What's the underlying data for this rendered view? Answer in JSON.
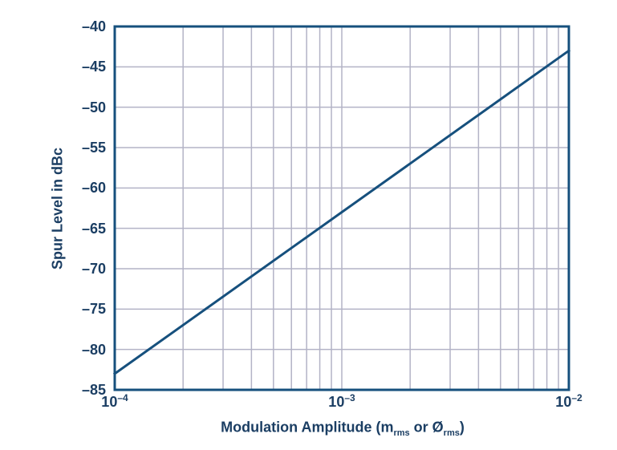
{
  "colors": {
    "background": "#ffffff",
    "text": "#1b3e63",
    "frame": "#16507d",
    "grid": "#b3b3c6",
    "line": "#16507d"
  },
  "labels": {
    "xlabel_parts": {
      "pre": "Modulation Amplitude (m",
      "sub1": "rms",
      "mid": " or Ø",
      "sub2": "rms",
      "post": ")"
    }
  },
  "chart_data": {
    "type": "line",
    "title": "",
    "xlabel": "Modulation Amplitude (m_rms or Ø_rms)",
    "ylabel": "Spur Level in dBc",
    "x_scale": "log",
    "y_scale": "linear",
    "xlim": [
      0.0001,
      0.01
    ],
    "ylim": [
      -85,
      -40
    ],
    "grid": true,
    "legend": "none",
    "series": [
      {
        "name": "spur-level-vs-modulation-amplitude",
        "x": [
          0.0001,
          0.001,
          0.01
        ],
        "y": [
          -83,
          -63,
          -43
        ]
      }
    ],
    "y_ticks": [
      {
        "label": "–40",
        "value": -40
      },
      {
        "label": "–45",
        "value": -45
      },
      {
        "label": "–50",
        "value": -50
      },
      {
        "label": "–55",
        "value": -55
      },
      {
        "label": "–60",
        "value": -60
      },
      {
        "label": "–65",
        "value": -65
      },
      {
        "label": "–70",
        "value": -70
      },
      {
        "label": "–75",
        "value": -75
      },
      {
        "label": "–80",
        "value": -80
      },
      {
        "label": "–85",
        "value": -85
      }
    ],
    "x_ticks": [
      {
        "base": "10",
        "exp": "–4",
        "value": 0.0001
      },
      {
        "base": "10",
        "exp": "–3",
        "value": 0.001
      },
      {
        "base": "10",
        "exp": "–2",
        "value": 0.01
      }
    ],
    "y_gridlines": [
      -45,
      -50,
      -55,
      -60,
      -65,
      -70,
      -75,
      -80
    ],
    "x_gridlines": [
      0.0002,
      0.0003,
      0.0004,
      0.0005,
      0.0006,
      0.0007,
      0.0008,
      0.0009,
      0.001,
      0.002,
      0.003,
      0.004,
      0.005,
      0.006,
      0.007,
      0.008,
      0.009
    ]
  }
}
